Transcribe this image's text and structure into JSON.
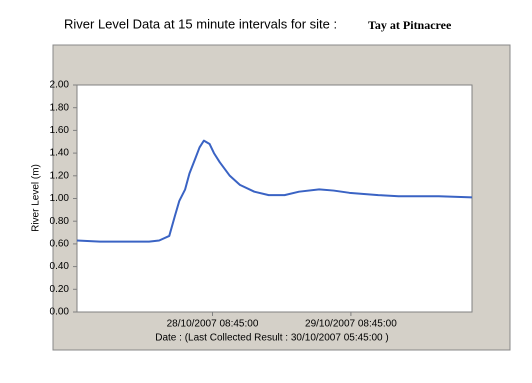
{
  "chart_data": {
    "type": "line",
    "title": "River Level Data at 15 minute intervals for site :",
    "site": "Tay at Pitnacree",
    "y_label": "River Level (m)",
    "x_label": "Date : (Last Collected Result : 30/10/2007 05:45:00 )",
    "color": "#3a63c4",
    "x": [
      "27/10/2007 09:15:00",
      "27/10/2007 13:15:00",
      "27/10/2007 21:45:00",
      "27/10/2007 23:30:00",
      "28/10/2007 01:15:00",
      "28/10/2007 02:15:00",
      "28/10/2007 03:00:00",
      "28/10/2007 04:00:00",
      "28/10/2007 04:45:00",
      "28/10/2007 05:45:00",
      "28/10/2007 06:30:00",
      "28/10/2007 07:15:00",
      "28/10/2007 08:15:00",
      "28/10/2007 09:00:00",
      "28/10/2007 10:00:00",
      "28/10/2007 11:45:00",
      "28/10/2007 13:30:00",
      "28/10/2007 16:00:00",
      "28/10/2007 18:30:00",
      "28/10/2007 21:15:00",
      "28/10/2007 23:45:00",
      "29/10/2007 03:15:00",
      "29/10/2007 05:45:00",
      "29/10/2007 08:30:00",
      "29/10/2007 13:30:00",
      "29/10/2007 17:00:00",
      "30/10/2007 00:00:00",
      "30/10/2007 05:45:00"
    ],
    "values": [
      0.63,
      0.62,
      0.62,
      0.63,
      0.67,
      0.85,
      0.98,
      1.08,
      1.22,
      1.35,
      1.45,
      1.51,
      1.48,
      1.4,
      1.32,
      1.2,
      1.12,
      1.06,
      1.03,
      1.03,
      1.06,
      1.08,
      1.07,
      1.05,
      1.03,
      1.02,
      1.02,
      1.01
    ],
    "xlim": [
      "27/10/2007 09:15:00",
      "30/10/2007 05:45:00"
    ],
    "xticks": [
      "28/10/2007 08:45:00",
      "29/10/2007 08:45:00"
    ],
    "ylim": [
      0,
      2
    ],
    "yticks": [
      {
        "value": 0,
        "label": "0.00"
      },
      {
        "value": 0.2,
        "label": "0.20"
      },
      {
        "value": 0.4,
        "label": "0.40"
      },
      {
        "value": 0.6,
        "label": "0.60"
      },
      {
        "value": 0.8,
        "label": "0.80"
      },
      {
        "value": 1,
        "label": "1.00"
      },
      {
        "value": 1.2,
        "label": "1.20"
      },
      {
        "value": 1.4,
        "label": "1.40"
      },
      {
        "value": 1.6,
        "label": "1.60"
      },
      {
        "value": 1.8,
        "label": "1.80"
      },
      {
        "value": 2,
        "label": "2.00"
      }
    ],
    "grid": false
  }
}
